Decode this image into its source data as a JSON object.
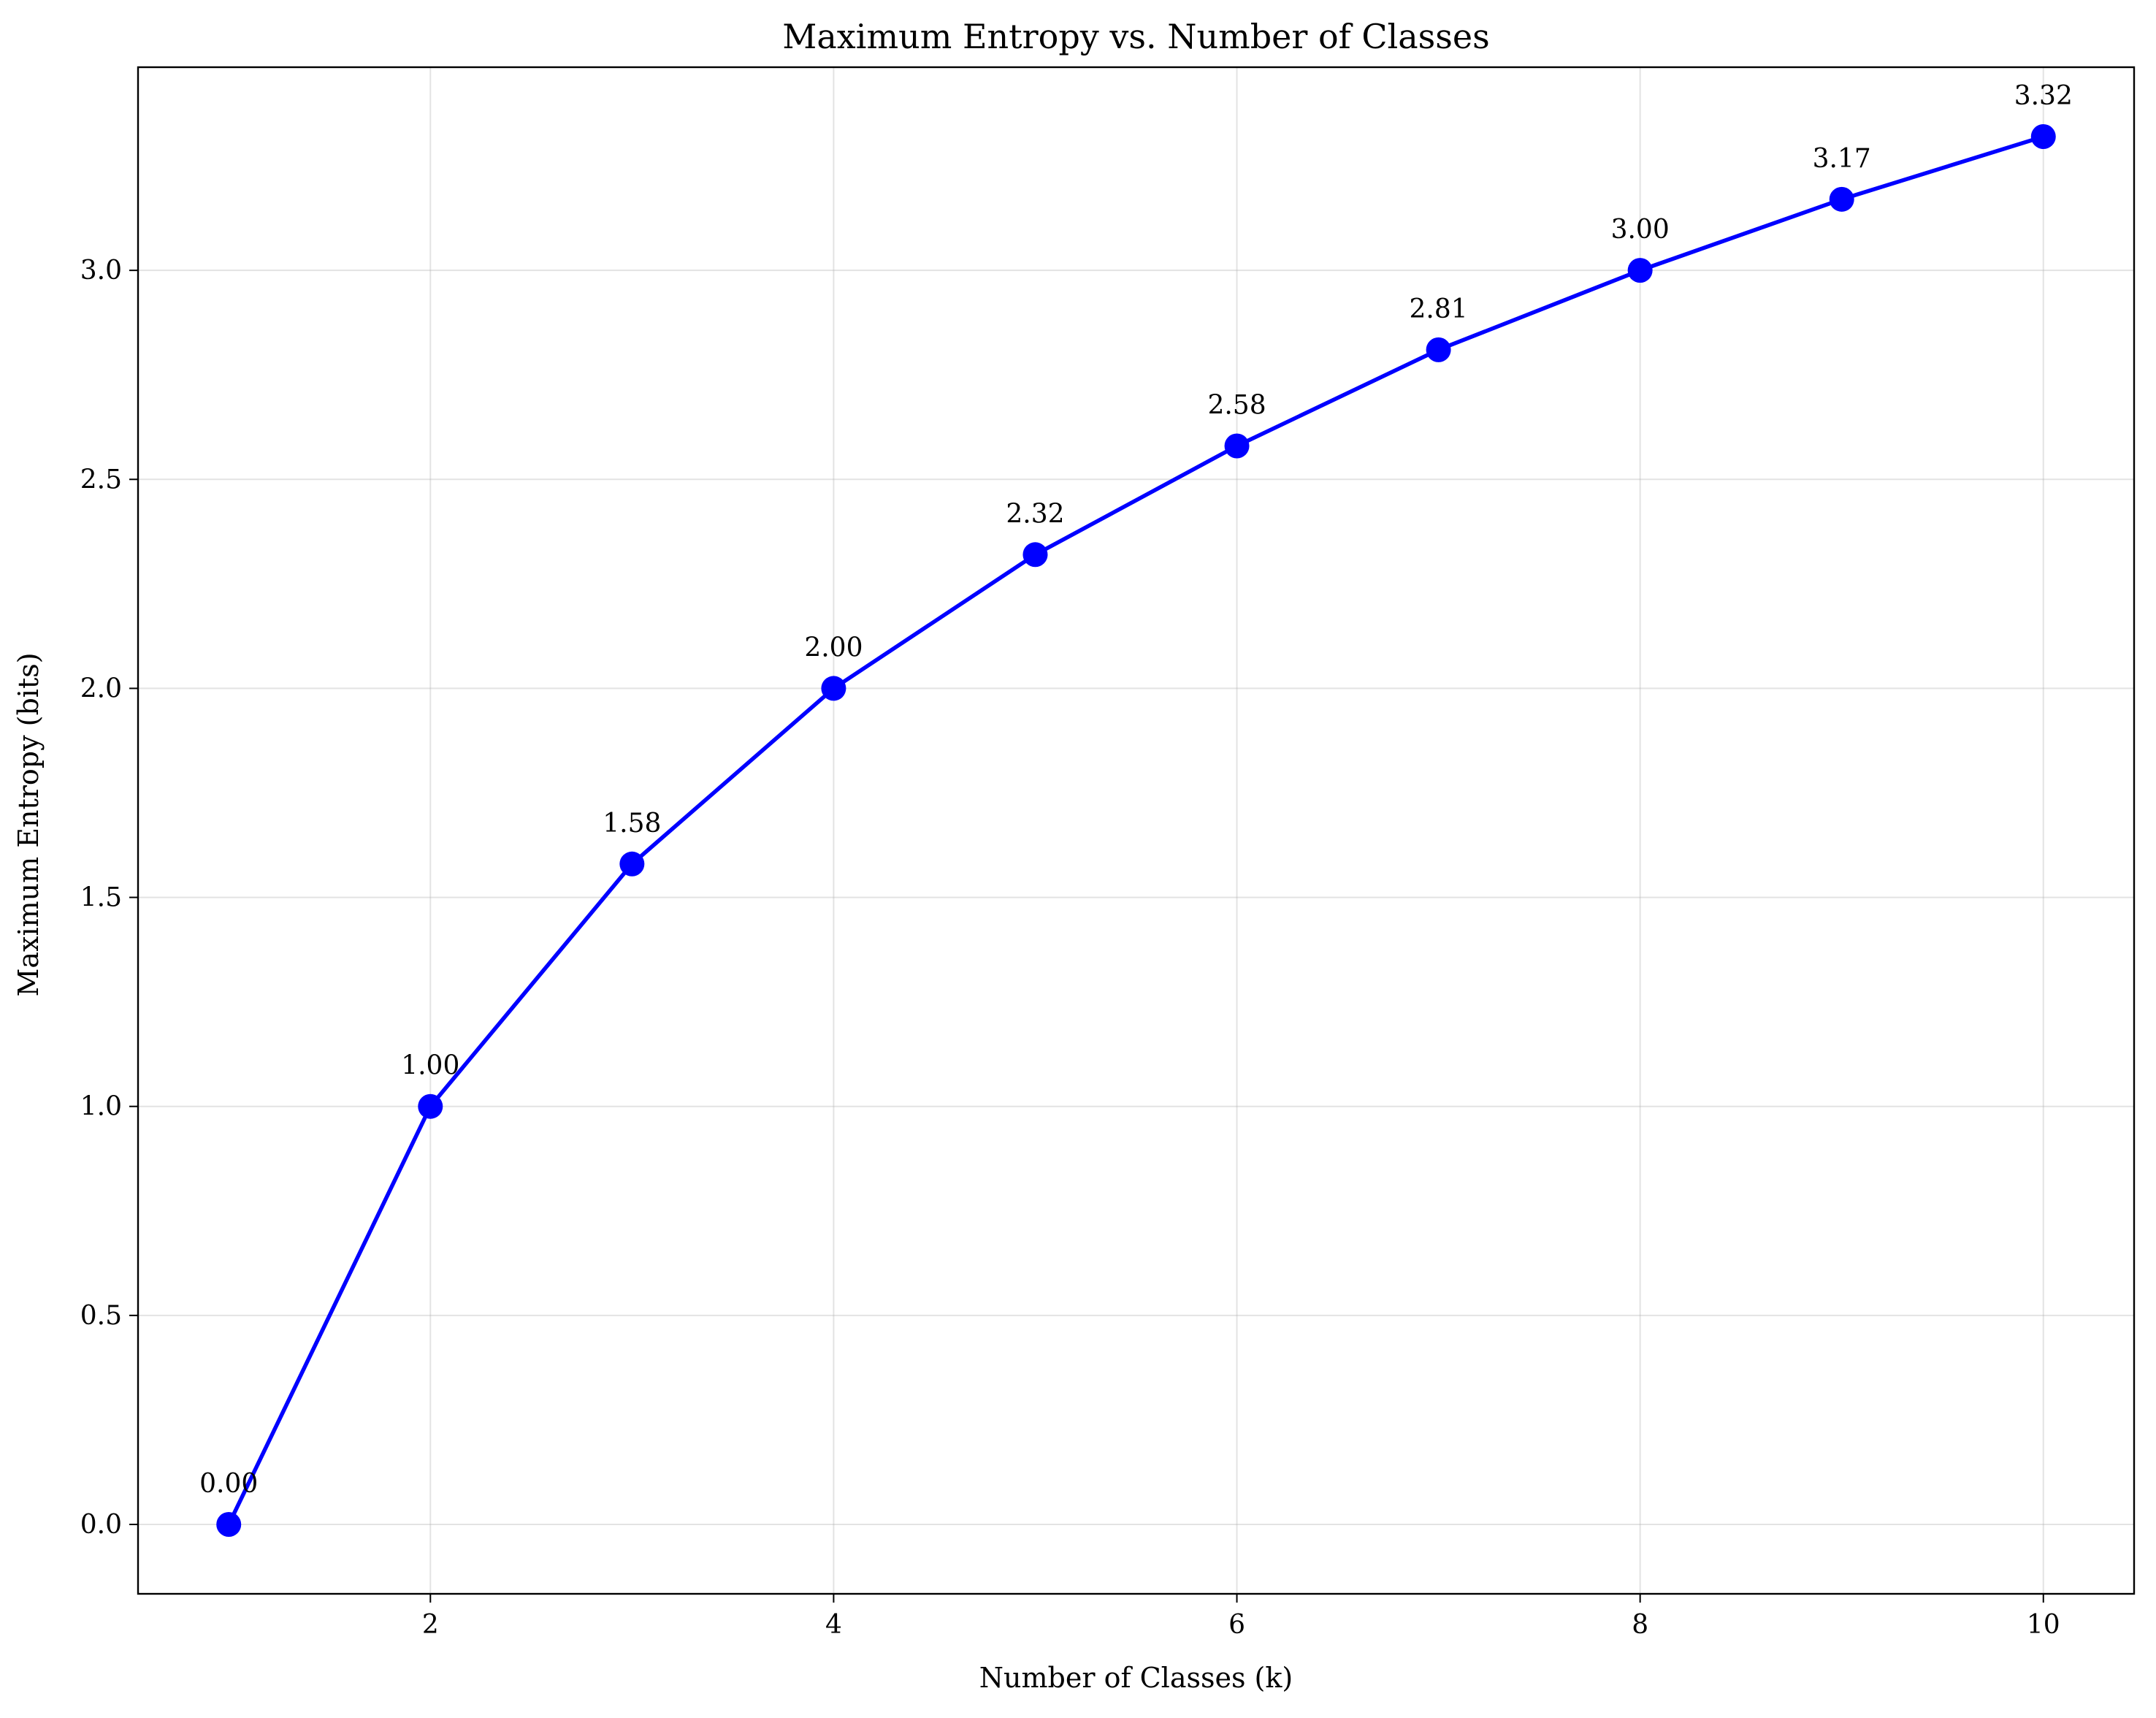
{
  "chart_data": {
    "type": "line",
    "title": "Maximum Entropy vs. Number of Classes",
    "xlabel": "Number of Classes (k)",
    "ylabel": "Maximum Entropy (bits)",
    "x": [
      1,
      2,
      3,
      4,
      5,
      6,
      7,
      8,
      9,
      10
    ],
    "series": [
      {
        "values": [
          0.0,
          1.0,
          1.58,
          2.0,
          2.32,
          2.58,
          2.81,
          3.0,
          3.17,
          3.32
        ],
        "color": "#0000ff",
        "marker": "circle"
      }
    ],
    "data_labels": [
      "0.00",
      "1.00",
      "1.58",
      "2.00",
      "2.32",
      "2.58",
      "2.81",
      "3.00",
      "3.17",
      "3.32"
    ],
    "xticks": [
      2,
      4,
      6,
      8,
      10
    ],
    "xtick_labels": [
      "2",
      "4",
      "6",
      "8",
      "10"
    ],
    "yticks": [
      0.0,
      0.5,
      1.0,
      1.5,
      2.0,
      2.5,
      3.0
    ],
    "ytick_labels": [
      "0.0",
      "0.5",
      "1.0",
      "1.5",
      "2.0",
      "2.5",
      "3.0"
    ],
    "xlim": [
      0.55,
      10.45
    ],
    "ylim": [
      -0.166,
      3.486
    ],
    "grid": true
  }
}
